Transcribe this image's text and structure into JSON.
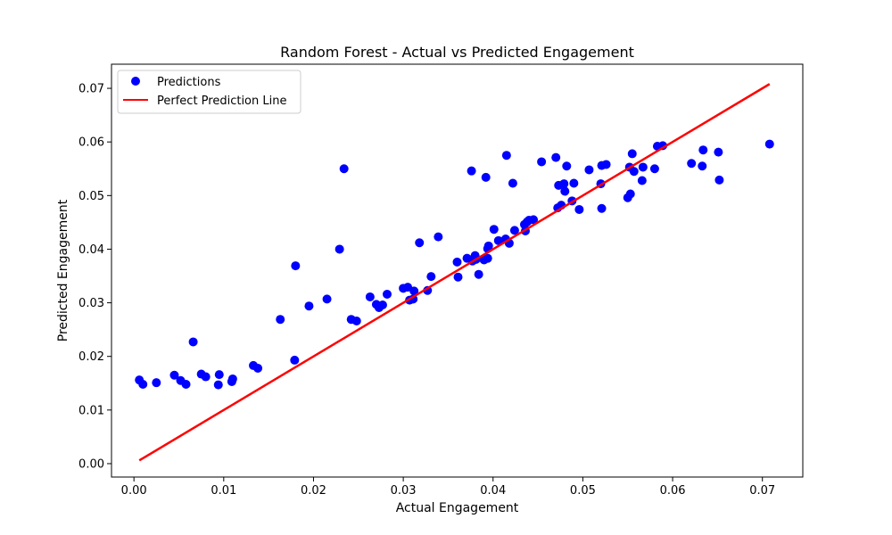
{
  "chart_data": {
    "type": "scatter",
    "title": "Random Forest - Actual vs Predicted Engagement",
    "xlabel": "Actual Engagement",
    "ylabel": "Predicted Engagement",
    "xlim": [
      -0.0025,
      0.0745
    ],
    "ylim": [
      -0.0025,
      0.0745
    ],
    "xticks": [
      "0.00",
      "0.01",
      "0.02",
      "0.03",
      "0.04",
      "0.05",
      "0.06",
      "0.07"
    ],
    "yticks": [
      "0.00",
      "0.01",
      "0.02",
      "0.03",
      "0.04",
      "0.05",
      "0.06",
      "0.07"
    ],
    "grid": false,
    "legend_position": "top-left",
    "series": [
      {
        "name": "Predictions",
        "kind": "scatter",
        "color": "#0000ff",
        "points": [
          [
            0.0006,
            0.0156
          ],
          [
            0.001,
            0.0148
          ],
          [
            0.0025,
            0.0151
          ],
          [
            0.0045,
            0.0165
          ],
          [
            0.0052,
            0.0155
          ],
          [
            0.0058,
            0.0148
          ],
          [
            0.0066,
            0.0227
          ],
          [
            0.0075,
            0.0167
          ],
          [
            0.008,
            0.0162
          ],
          [
            0.0094,
            0.0147
          ],
          [
            0.0095,
            0.0166
          ],
          [
            0.0109,
            0.0153
          ],
          [
            0.011,
            0.0158
          ],
          [
            0.0133,
            0.0183
          ],
          [
            0.0138,
            0.0178
          ],
          [
            0.0163,
            0.0269
          ],
          [
            0.0179,
            0.0193
          ],
          [
            0.018,
            0.0369
          ],
          [
            0.0195,
            0.0294
          ],
          [
            0.0215,
            0.0307
          ],
          [
            0.0229,
            0.04
          ],
          [
            0.0234,
            0.055
          ],
          [
            0.0242,
            0.0269
          ],
          [
            0.0248,
            0.0266
          ],
          [
            0.0263,
            0.0311
          ],
          [
            0.027,
            0.0297
          ],
          [
            0.0273,
            0.0291
          ],
          [
            0.0277,
            0.0296
          ],
          [
            0.0282,
            0.0316
          ],
          [
            0.03,
            0.0327
          ],
          [
            0.0305,
            0.0329
          ],
          [
            0.0307,
            0.0305
          ],
          [
            0.0311,
            0.0307
          ],
          [
            0.0312,
            0.0322
          ],
          [
            0.0318,
            0.0412
          ],
          [
            0.0327,
            0.0323
          ],
          [
            0.0331,
            0.0349
          ],
          [
            0.0339,
            0.0423
          ],
          [
            0.036,
            0.0376
          ],
          [
            0.0361,
            0.0348
          ],
          [
            0.0371,
            0.0383
          ],
          [
            0.0376,
            0.0546
          ],
          [
            0.0377,
            0.0378
          ],
          [
            0.038,
            0.0388
          ],
          [
            0.0381,
            0.0381
          ],
          [
            0.0384,
            0.0353
          ],
          [
            0.039,
            0.038
          ],
          [
            0.0392,
            0.0534
          ],
          [
            0.0394,
            0.0383
          ],
          [
            0.0394,
            0.0401
          ],
          [
            0.0395,
            0.0406
          ],
          [
            0.0401,
            0.0437
          ],
          [
            0.0406,
            0.0416
          ],
          [
            0.0414,
            0.0419
          ],
          [
            0.0415,
            0.0575
          ],
          [
            0.0418,
            0.0411
          ],
          [
            0.0422,
            0.0523
          ],
          [
            0.0424,
            0.0435
          ],
          [
            0.0435,
            0.0446
          ],
          [
            0.0436,
            0.0434
          ],
          [
            0.0438,
            0.0451
          ],
          [
            0.044,
            0.0454
          ],
          [
            0.0445,
            0.0455
          ],
          [
            0.0454,
            0.0563
          ],
          [
            0.047,
            0.0571
          ],
          [
            0.0472,
            0.0477
          ],
          [
            0.0473,
            0.0519
          ],
          [
            0.0476,
            0.0482
          ],
          [
            0.0479,
            0.0522
          ],
          [
            0.048,
            0.0508
          ],
          [
            0.0482,
            0.0555
          ],
          [
            0.0488,
            0.049
          ],
          [
            0.049,
            0.0523
          ],
          [
            0.0496,
            0.0474
          ],
          [
            0.0507,
            0.0548
          ],
          [
            0.052,
            0.0522
          ],
          [
            0.0521,
            0.0476
          ],
          [
            0.0521,
            0.0556
          ],
          [
            0.0526,
            0.0558
          ],
          [
            0.055,
            0.0496
          ],
          [
            0.0552,
            0.0553
          ],
          [
            0.0553,
            0.0503
          ],
          [
            0.0555,
            0.0578
          ],
          [
            0.0557,
            0.0545
          ],
          [
            0.0566,
            0.0528
          ],
          [
            0.0567,
            0.0553
          ],
          [
            0.058,
            0.055
          ],
          [
            0.0583,
            0.0592
          ],
          [
            0.0589,
            0.0593
          ],
          [
            0.0621,
            0.056
          ],
          [
            0.0633,
            0.0555
          ],
          [
            0.0634,
            0.0585
          ],
          [
            0.0651,
            0.0581
          ],
          [
            0.0652,
            0.0529
          ],
          [
            0.0708,
            0.0596
          ]
        ]
      },
      {
        "name": "Perfect Prediction Line",
        "kind": "line",
        "color": "#ff0000",
        "x": [
          0.0006,
          0.0708
        ],
        "y": [
          0.0006,
          0.0708
        ]
      }
    ]
  }
}
